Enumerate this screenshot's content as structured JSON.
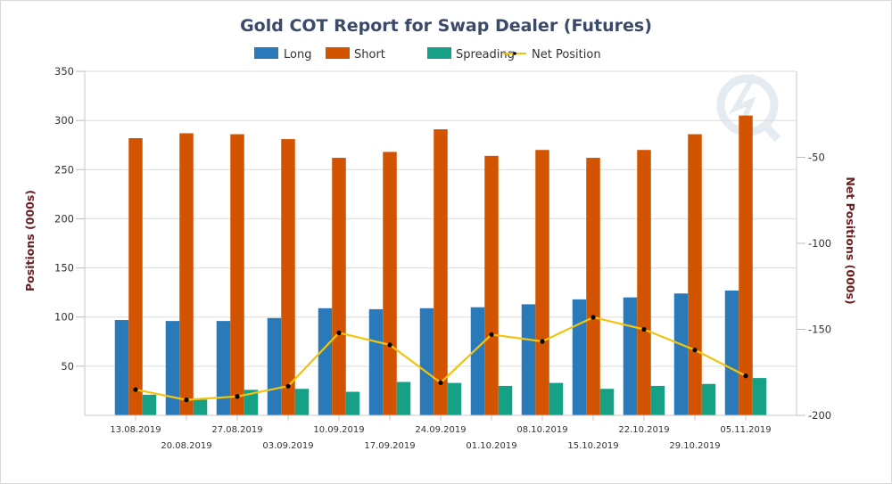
{
  "chart_data": {
    "type": "bar",
    "title": "Gold COT Report for Swap Dealer (Futures)",
    "xlabel": "",
    "ylabel": "Positions (000s)",
    "y2label": "Net Positions (000s)",
    "ylim": [
      0,
      350
    ],
    "y2lim": [
      -200,
      0
    ],
    "yticks": [
      50,
      100,
      150,
      200,
      250,
      300,
      350
    ],
    "y2ticks": [
      -50,
      -100,
      -150,
      -200
    ],
    "grid": true,
    "legend_position": "top-center",
    "categories": [
      "13.08.2019",
      "20.08.2019",
      "27.08.2019",
      "03.09.2019",
      "10.09.2019",
      "17.09.2019",
      "24.09.2019",
      "01.10.2019",
      "08.10.2019",
      "15.10.2019",
      "22.10.2019",
      "29.10.2019",
      "05.11.2019"
    ],
    "series": [
      {
        "name": "Long",
        "type": "bar",
        "axis": "left",
        "color": "#2a7ab9",
        "values": [
          97,
          96,
          96,
          99,
          109,
          108,
          109,
          110,
          113,
          118,
          120,
          124,
          127
        ]
      },
      {
        "name": "Short",
        "type": "bar",
        "axis": "left",
        "color": "#d35400",
        "values": [
          282,
          287,
          286,
          281,
          262,
          268,
          291,
          264,
          270,
          262,
          270,
          286,
          305
        ]
      },
      {
        "name": "Spreading",
        "type": "bar",
        "axis": "left",
        "color": "#16a085",
        "values": [
          21,
          16,
          26,
          27,
          24,
          34,
          33,
          30,
          33,
          27,
          30,
          32,
          38
        ]
      },
      {
        "name": "Net Position",
        "type": "line",
        "axis": "right",
        "color": "#f1c40f",
        "values": [
          -185,
          -191,
          -189,
          -183,
          -152,
          -159,
          -181,
          -153,
          -157,
          -143,
          -150,
          -162,
          -177
        ]
      }
    ]
  }
}
